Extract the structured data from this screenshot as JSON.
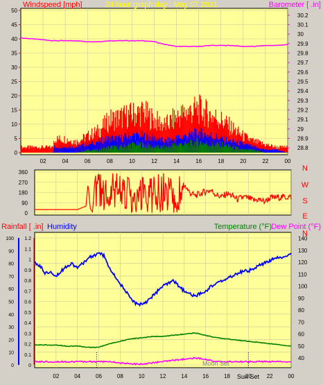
{
  "colors": {
    "windspeed": "#ff0000",
    "gust_fill": "#ff0000",
    "avg_fill": "#0000ff",
    "low_fill": "#008000",
    "barometer": "#ff00ff",
    "direction": "#ff0000",
    "rain": "#ff0000",
    "humidity": "#0000ff",
    "temperature": "#008000",
    "dewpoint": "#ff00ff",
    "plot_bg": "#ffff99",
    "frame_bg": "#d4d0c8",
    "grid": "#c8c8a0"
  },
  "chart_data": [
    {
      "type": "line",
      "title": "24 hour graph day : May 07 2021",
      "left_axis_label": "Windspeed [mph]",
      "right_axis_label": "Barometer [ .in]",
      "x_ticks": [
        "02",
        "04",
        "06",
        "08",
        "10",
        "12",
        "14",
        "16",
        "18",
        "20",
        "22",
        "00"
      ],
      "x_range": [
        0,
        24
      ],
      "left_ticks": [
        "0",
        "5",
        "10",
        "15",
        "20",
        "25",
        "30",
        "35",
        "40",
        "45",
        "50"
      ],
      "ylim_left": [
        0,
        50
      ],
      "right_ticks": [
        "28.8",
        "28.9",
        "29",
        "29.1",
        "29.2",
        "29.3",
        "29.4",
        "29.5",
        "29.6",
        "29.7",
        "29.8",
        "29.9",
        "30",
        "30.1",
        "30.2"
      ],
      "ylim_right": [
        28.75,
        30.25
      ],
      "series": [
        {
          "name": "Windspeed",
          "axis": "left",
          "style": "gust",
          "x": [
            0,
            1,
            2,
            2.9,
            3,
            4,
            5,
            6,
            7,
            8,
            9,
            10,
            11,
            12,
            13,
            14,
            15,
            16,
            17,
            18,
            19,
            20,
            21,
            22,
            23,
            24
          ],
          "y": [
            2,
            2,
            2,
            2,
            5,
            5,
            4,
            6,
            8,
            12,
            13,
            14,
            15,
            12,
            10,
            13,
            15,
            16,
            14,
            12,
            9,
            6,
            4,
            3,
            2,
            2
          ]
        },
        {
          "name": "Windspeed",
          "axis": "left",
          "style": "avg",
          "x": [
            0,
            2.9,
            3,
            4,
            5,
            6,
            7,
            8,
            9,
            10,
            11,
            12,
            13,
            14,
            15,
            16,
            17,
            18,
            19,
            20,
            21,
            22,
            23,
            24
          ],
          "y": [
            0,
            0,
            2,
            2,
            2,
            3,
            4,
            5,
            5,
            6,
            6,
            5,
            4,
            5,
            6,
            7,
            6,
            5,
            4,
            3,
            2,
            1,
            1,
            0
          ]
        },
        {
          "name": "Windspeed",
          "axis": "left",
          "style": "low",
          "x": [
            0,
            2.9,
            3,
            4,
            5,
            6,
            7,
            8,
            9,
            10,
            11,
            12,
            13,
            14,
            15,
            16,
            17,
            18,
            19,
            20,
            21,
            22,
            23,
            24
          ],
          "y": [
            0,
            0,
            0,
            0,
            0,
            1,
            1,
            2,
            2,
            3,
            3,
            2,
            2,
            3,
            3,
            4,
            3,
            3,
            2,
            1,
            1,
            0,
            0,
            0
          ]
        },
        {
          "name": "Barometer",
          "axis": "right",
          "x": [
            0,
            1,
            2,
            3,
            4,
            5,
            6,
            7,
            8,
            9,
            10,
            11,
            12,
            13,
            14,
            15,
            16,
            17,
            18,
            19,
            20,
            21,
            22,
            23,
            24
          ],
          "y": [
            29.96,
            29.95,
            29.94,
            29.93,
            29.93,
            29.93,
            29.92,
            29.92,
            29.93,
            29.93,
            29.93,
            29.93,
            29.92,
            29.89,
            29.87,
            29.87,
            29.87,
            29.88,
            29.88,
            29.88,
            29.87,
            29.87,
            29.88,
            29.88,
            29.89
          ]
        }
      ]
    },
    {
      "type": "line",
      "title": "",
      "left_ticks": [
        "0",
        "90",
        "180",
        "270",
        "360"
      ],
      "ylim": [
        0,
        360
      ],
      "right_labels": [
        "N",
        "W",
        "S",
        "E",
        "N"
      ],
      "x_ticks": [
        "02",
        "04",
        "06",
        "08",
        "10",
        "12",
        "14",
        "16",
        "18",
        "20",
        "22",
        "00"
      ],
      "series": [
        {
          "name": "Wind direction",
          "x": [
            0,
            2,
            4,
            4.8,
            5,
            5.2,
            5.4,
            5.8,
            6,
            6.2,
            6.5,
            7,
            7.5,
            8,
            8.5,
            9,
            9.5,
            10,
            10.5,
            11,
            11.5,
            12,
            12.5,
            13,
            13.5,
            14,
            14.5,
            15,
            15.5,
            16,
            16.5,
            17,
            17.5,
            18,
            18.5,
            19,
            19.5,
            20,
            20.5,
            21,
            21.5,
            22,
            23,
            24
          ],
          "y": [
            30,
            30,
            30,
            60,
            260,
            40,
            10,
            360,
            340,
            20,
            360,
            40,
            360,
            60,
            360,
            120,
            60,
            360,
            50,
            300,
            80,
            20,
            350,
            90,
            30,
            250,
            180,
            150,
            170,
            190,
            200,
            160,
            140,
            170,
            150,
            120,
            140,
            130,
            110,
            120,
            100,
            130,
            140,
            140
          ]
        }
      ]
    },
    {
      "type": "line",
      "title": "",
      "left_axis_label": "Rainfall [ .in]",
      "left_axis_label2": "Humidity",
      "right_axis_label": "Temperature (°F)",
      "right_axis_label2": "Dew Point (°F)",
      "x_ticks": [
        "02",
        "04",
        "06",
        "08",
        "10",
        "12",
        "14",
        "16",
        "18",
        "20",
        "22",
        "00"
      ],
      "x_range": [
        0,
        24
      ],
      "rain_ticks": [
        "0",
        "0.1",
        "0.2",
        "0.3",
        "0.4",
        "0.5",
        "0.6",
        "0.7",
        "0.8",
        "0.9",
        "1",
        "1.1",
        "1.2"
      ],
      "humidity_ticks": [
        "0",
        "10",
        "20",
        "30",
        "40",
        "50",
        "60",
        "70",
        "80",
        "90",
        "100"
      ],
      "right_ticks": [
        "40",
        "50",
        "60",
        "70",
        "80",
        "90",
        "100",
        "110",
        "120",
        "130",
        "140"
      ],
      "ylim_humidity": [
        0,
        100
      ],
      "ylim_right": [
        32,
        145
      ],
      "annotations": [
        "Moon Set",
        "Sun Set"
      ],
      "series": [
        {
          "name": "Humidity",
          "axis": "left",
          "x": [
            0,
            0.5,
            1,
            1.5,
            2,
            2.5,
            3,
            3.5,
            4,
            4.5,
            5,
            5.5,
            6,
            6.5,
            7,
            7.5,
            8,
            8.5,
            9,
            9.5,
            10,
            10.5,
            11,
            11.5,
            12,
            12.5,
            13,
            13.5,
            14,
            14.5,
            15,
            15.5,
            16,
            16.5,
            17,
            17.5,
            18,
            18.5,
            19,
            19.5,
            20,
            20.5,
            21,
            21.5,
            22,
            22.5,
            23,
            23.5,
            24
          ],
          "y": [
            80,
            78,
            72,
            74,
            70,
            74,
            78,
            80,
            76,
            80,
            84,
            86,
            88,
            86,
            76,
            70,
            64,
            58,
            52,
            48,
            48,
            50,
            54,
            58,
            62,
            64,
            66,
            62,
            58,
            56,
            54,
            56,
            58,
            62,
            64,
            66,
            68,
            70,
            72,
            74,
            74,
            76,
            78,
            80,
            82,
            84,
            84,
            86,
            88
          ]
        },
        {
          "name": "Temperature",
          "axis": "right",
          "x": [
            0,
            1,
            2,
            3,
            4,
            5,
            6,
            7,
            8,
            9,
            10,
            11,
            12,
            13,
            14,
            15,
            16,
            17,
            18,
            19,
            20,
            21,
            22,
            23,
            24
          ],
          "y": [
            51,
            51,
            51,
            50,
            50,
            49,
            49,
            52,
            54,
            56,
            57,
            58,
            58,
            59,
            60,
            61,
            59,
            57,
            56,
            55,
            54,
            53,
            52,
            51,
            50
          ]
        },
        {
          "name": "Dew Point",
          "axis": "right",
          "x": [
            0,
            1,
            2,
            3,
            4,
            5,
            6,
            7,
            8,
            9,
            10,
            11,
            12,
            13,
            14,
            15,
            16,
            17,
            18,
            19,
            20,
            21,
            22,
            23,
            24
          ],
          "y": [
            37,
            37,
            37,
            37,
            37,
            37,
            37,
            37,
            36,
            35,
            35,
            36,
            37,
            38,
            39,
            40,
            39,
            37,
            37,
            37,
            37,
            37,
            37,
            37,
            37
          ]
        }
      ]
    }
  ]
}
